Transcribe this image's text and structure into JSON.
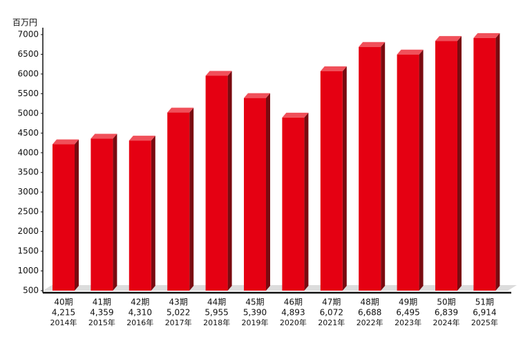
{
  "chart_data": {
    "type": "bar3d",
    "y_unit": "百万円",
    "categories": [
      "40期",
      "41期",
      "42期",
      "43期",
      "44期",
      "45期",
      "46期",
      "47期",
      "48期",
      "49期",
      "50期",
      "51期"
    ],
    "values": [
      4215,
      4359,
      4310,
      5022,
      5955,
      5390,
      4893,
      6072,
      6688,
      6495,
      6839,
      6914
    ],
    "value_labels": [
      "4,215",
      "4,359",
      "4,310",
      "5,022",
      "5,955",
      "5,390",
      "4,893",
      "6,072",
      "6,688",
      "6,495",
      "6,839",
      "6,914"
    ],
    "years": [
      "2014年",
      "2015年",
      "2016年",
      "2017年",
      "2018年",
      "2019年",
      "2020年",
      "2021年",
      "2022年",
      "2023年",
      "2024年",
      "2025年"
    ],
    "color": "#e50012",
    "ylim": [
      500,
      7000
    ],
    "yticks": [
      500,
      1000,
      1500,
      2000,
      2500,
      3000,
      3500,
      4000,
      4500,
      5000,
      5500,
      6000,
      6500,
      7000
    ],
    "grid": false
  }
}
